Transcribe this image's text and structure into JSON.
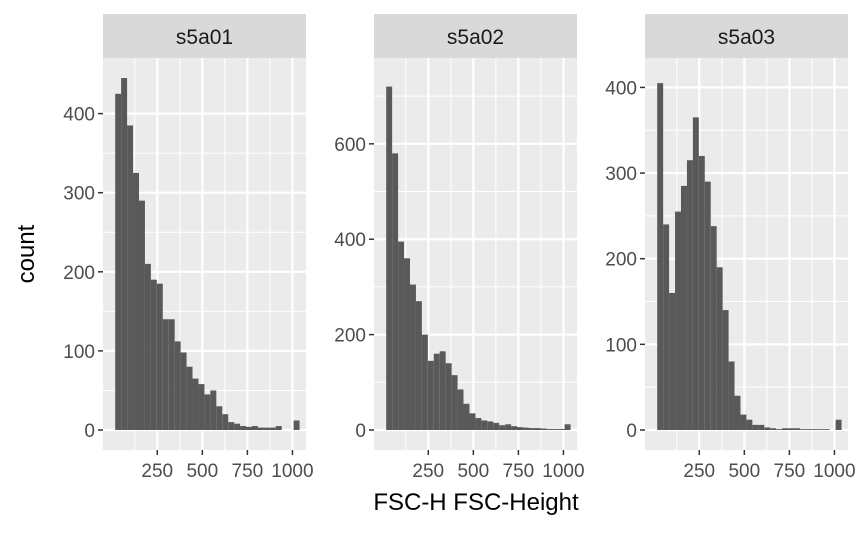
{
  "chart_data": {
    "type": "bar",
    "subtype": "faceted-histogram",
    "xlabel": "FSC-H FSC-Height",
    "ylabel": "count",
    "xlim": [
      0,
      1024
    ],
    "x_ticks": [
      250,
      500,
      750,
      1000
    ],
    "x_tick_labels": [
      "250",
      "500",
      "750",
      "1000"
    ],
    "bin_width": 33,
    "grid": true,
    "colors": {
      "bar": "#595959",
      "panel": "#ebebeb",
      "strip": "#d9d9d9",
      "grid": "#ffffff"
    },
    "panels": [
      {
        "label": "s5a01",
        "ylim": [
          0,
          445
        ],
        "y_ticks": [
          0,
          100,
          200,
          300,
          400
        ],
        "y_tick_labels": [
          "0",
          "100",
          "200",
          "300",
          "400"
        ],
        "x": [
          33,
          66,
          99,
          132,
          165,
          198,
          231,
          264,
          297,
          330,
          363,
          396,
          429,
          462,
          495,
          528,
          561,
          594,
          627,
          660,
          693,
          726,
          759,
          792,
          825,
          858,
          891,
          924,
          957,
          990,
          1023
        ],
        "values": [
          425,
          445,
          385,
          325,
          290,
          210,
          190,
          185,
          140,
          140,
          112,
          98,
          80,
          65,
          58,
          45,
          50,
          30,
          20,
          10,
          8,
          5,
          4,
          5,
          3,
          3,
          3,
          5,
          0,
          0,
          12
        ]
      },
      {
        "label": "s5a02",
        "ylim": [
          0,
          738
        ],
        "y_ticks": [
          0,
          200,
          400,
          600
        ],
        "y_tick_labels": [
          "0",
          "200",
          "400",
          "600"
        ],
        "x": [
          33,
          66,
          99,
          132,
          165,
          198,
          231,
          264,
          297,
          330,
          363,
          396,
          429,
          462,
          495,
          528,
          561,
          594,
          627,
          660,
          693,
          726,
          759,
          792,
          825,
          858,
          891,
          924,
          957,
          990,
          1023
        ],
        "values": [
          720,
          580,
          395,
          360,
          305,
          270,
          200,
          145,
          160,
          165,
          140,
          115,
          85,
          55,
          35,
          25,
          20,
          18,
          15,
          10,
          12,
          8,
          6,
          5,
          4,
          4,
          3,
          2,
          2,
          2,
          12
        ]
      },
      {
        "label": "s5a03",
        "ylim": [
          0,
          411
        ],
        "y_ticks": [
          0,
          100,
          200,
          300,
          400
        ],
        "y_tick_labels": [
          "0",
          "100",
          "200",
          "300",
          "400"
        ],
        "x": [
          33,
          66,
          99,
          132,
          165,
          198,
          231,
          264,
          297,
          330,
          363,
          396,
          429,
          462,
          495,
          528,
          561,
          594,
          627,
          660,
          693,
          726,
          759,
          792,
          825,
          858,
          891,
          924,
          957,
          990,
          1023
        ],
        "values": [
          405,
          240,
          160,
          255,
          285,
          315,
          365,
          320,
          290,
          238,
          190,
          140,
          80,
          40,
          18,
          12,
          6,
          6,
          3,
          2,
          1,
          2,
          2,
          2,
          1,
          1,
          1,
          1,
          1,
          0,
          12
        ]
      }
    ]
  }
}
